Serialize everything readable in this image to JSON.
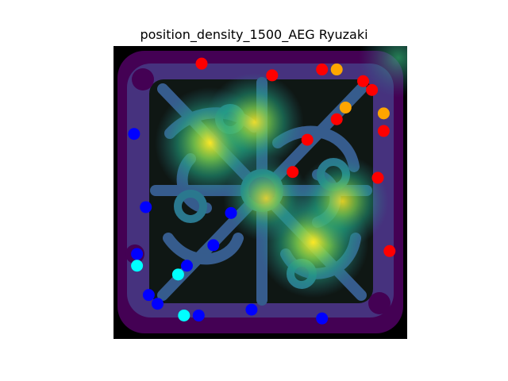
{
  "chart_data": {
    "type": "scatter",
    "title": "position_density_1500_AEG Ryuzaki",
    "xlabel": "",
    "ylabel": "",
    "xlim": [
      0,
      1
    ],
    "ylim": [
      0,
      1
    ],
    "axes_visible": false,
    "background": "density heatmap (viridis) over a square map with ornamental dark walls",
    "colors": {
      "red": "#ff0000",
      "orange": "#ffa500",
      "blue": "#0000ff",
      "cyan": "#00ffff",
      "viridis_low": "#440154",
      "viridis_mid": "#21918c",
      "viridis_high": "#fde725",
      "wall": "#0f1714"
    },
    "density_peaks": [
      {
        "x": 0.33,
        "y": 0.67,
        "weight": 1.0
      },
      {
        "x": 0.48,
        "y": 0.74,
        "weight": 0.8
      },
      {
        "x": 0.68,
        "y": 0.33,
        "weight": 1.0
      },
      {
        "x": 0.78,
        "y": 0.47,
        "weight": 0.7
      },
      {
        "x": 0.52,
        "y": 0.48,
        "weight": 0.6
      },
      {
        "x": 0.97,
        "y": 0.96,
        "weight": 0.5
      }
    ],
    "series": [
      {
        "color": "red",
        "points": [
          {
            "x": 0.3,
            "y": 0.94
          },
          {
            "x": 0.54,
            "y": 0.9
          },
          {
            "x": 0.71,
            "y": 0.92
          },
          {
            "x": 0.85,
            "y": 0.88
          },
          {
            "x": 0.88,
            "y": 0.85
          },
          {
            "x": 0.76,
            "y": 0.75
          },
          {
            "x": 0.92,
            "y": 0.71
          },
          {
            "x": 0.66,
            "y": 0.68
          },
          {
            "x": 0.61,
            "y": 0.57
          },
          {
            "x": 0.9,
            "y": 0.55
          },
          {
            "x": 0.94,
            "y": 0.3
          }
        ]
      },
      {
        "color": "orange",
        "points": [
          {
            "x": 0.76,
            "y": 0.92
          },
          {
            "x": 0.79,
            "y": 0.79
          },
          {
            "x": 0.92,
            "y": 0.77
          }
        ]
      },
      {
        "color": "blue",
        "points": [
          {
            "x": 0.07,
            "y": 0.7
          },
          {
            "x": 0.11,
            "y": 0.45
          },
          {
            "x": 0.4,
            "y": 0.43
          },
          {
            "x": 0.34,
            "y": 0.32
          },
          {
            "x": 0.08,
            "y": 0.29
          },
          {
            "x": 0.25,
            "y": 0.25
          },
          {
            "x": 0.12,
            "y": 0.15
          },
          {
            "x": 0.15,
            "y": 0.12
          },
          {
            "x": 0.29,
            "y": 0.08
          },
          {
            "x": 0.47,
            "y": 0.1
          },
          {
            "x": 0.71,
            "y": 0.07
          }
        ]
      },
      {
        "color": "cyan",
        "points": [
          {
            "x": 0.08,
            "y": 0.25
          },
          {
            "x": 0.22,
            "y": 0.22
          },
          {
            "x": 0.24,
            "y": 0.08
          }
        ]
      }
    ]
  }
}
